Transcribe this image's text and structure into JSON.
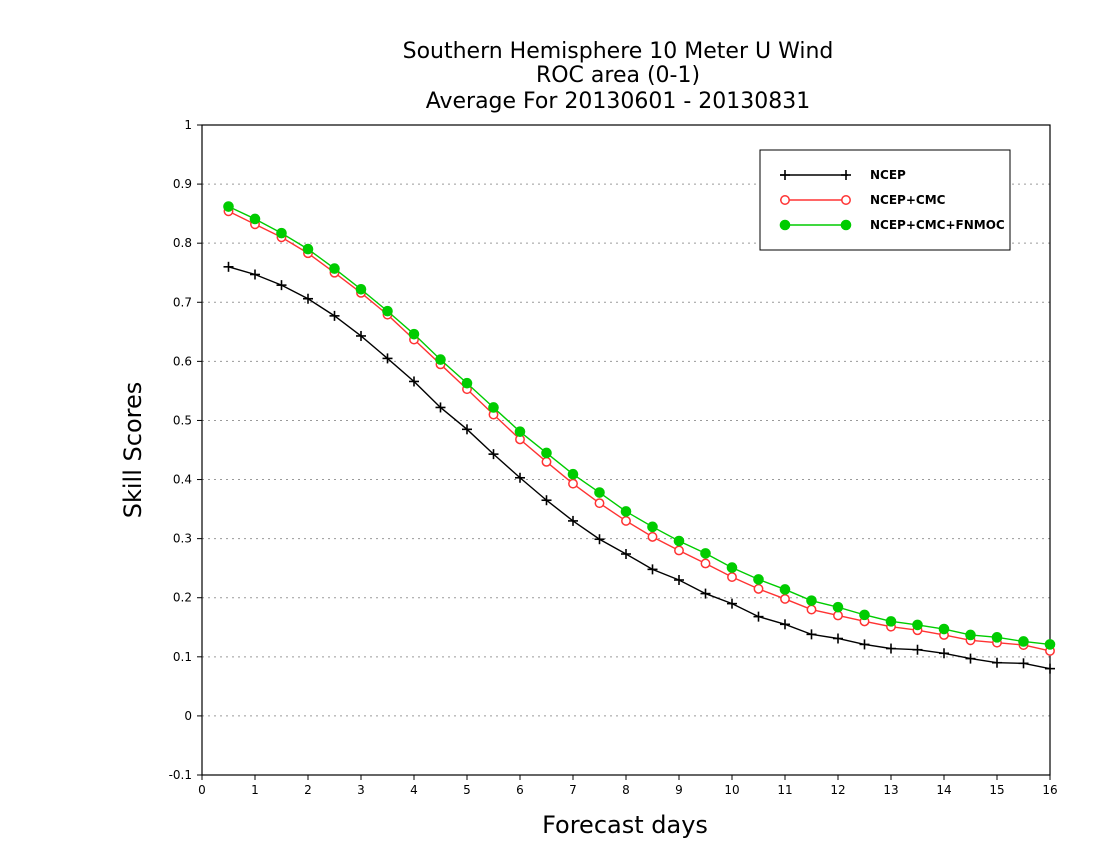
{
  "chart_data": {
    "type": "line",
    "title_lines": [
      "Southern Hemisphere 10 Meter U Wind",
      "ROC area (0-1)",
      "Average For 20130601 - 20130831"
    ],
    "xlabel": "Forecast days",
    "ylabel": "Skill Scores",
    "xlim": [
      0,
      16
    ],
    "ylim": [
      -0.1,
      1
    ],
    "x_ticks": [
      "0",
      "1",
      "2",
      "3",
      "4",
      "5",
      "6",
      "7",
      "8",
      "9",
      "10",
      "11",
      "12",
      "13",
      "14",
      "15",
      "16"
    ],
    "y_ticks": [
      "-0.1",
      "0",
      "0.1",
      "0.2",
      "0.3",
      "0.4",
      "0.5",
      "0.6",
      "0.7",
      "0.8",
      "0.9",
      "1"
    ],
    "grid": true,
    "legend_position": "top-right",
    "x": [
      0.5,
      1,
      1.5,
      2,
      2.5,
      3,
      3.5,
      4,
      4.5,
      5,
      5.5,
      6,
      6.5,
      7,
      7.5,
      8,
      8.5,
      9,
      9.5,
      10,
      10.5,
      11,
      11.5,
      12,
      12.5,
      13,
      13.5,
      14,
      14.5,
      15,
      15.5,
      16
    ],
    "series": [
      {
        "name": "NCEP",
        "color": "#000000",
        "marker": "plus",
        "values": [
          0.76,
          0.747,
          0.729,
          0.706,
          0.677,
          0.643,
          0.605,
          0.566,
          0.522,
          0.485,
          0.443,
          0.403,
          0.365,
          0.33,
          0.299,
          0.274,
          0.248,
          0.23,
          0.207,
          0.19,
          0.168,
          0.155,
          0.138,
          0.131,
          0.121,
          0.114,
          0.112,
          0.106,
          0.097,
          0.09,
          0.089,
          0.08
        ]
      },
      {
        "name": "NCEP+CMC",
        "color": "#ff3333",
        "marker": "open-circle",
        "values": [
          0.854,
          0.832,
          0.81,
          0.783,
          0.75,
          0.716,
          0.679,
          0.637,
          0.595,
          0.553,
          0.51,
          0.468,
          0.43,
          0.393,
          0.36,
          0.33,
          0.303,
          0.28,
          0.258,
          0.235,
          0.215,
          0.198,
          0.18,
          0.17,
          0.16,
          0.151,
          0.145,
          0.137,
          0.128,
          0.124,
          0.12,
          0.11
        ]
      },
      {
        "name": "NCEP+CMC+FNMOC",
        "color": "#00cc00",
        "marker": "filled-circle",
        "values": [
          0.862,
          0.841,
          0.817,
          0.79,
          0.757,
          0.722,
          0.685,
          0.646,
          0.603,
          0.563,
          0.522,
          0.481,
          0.445,
          0.409,
          0.378,
          0.346,
          0.32,
          0.296,
          0.275,
          0.251,
          0.231,
          0.214,
          0.195,
          0.184,
          0.171,
          0.16,
          0.154,
          0.147,
          0.137,
          0.133,
          0.126,
          0.121
        ]
      }
    ]
  }
}
